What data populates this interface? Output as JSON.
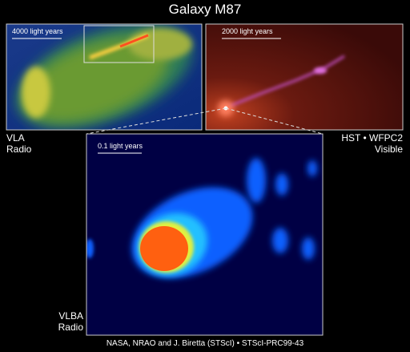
{
  "title": "Galaxy M87",
  "panels": {
    "vla": {
      "scale": "4000 light years",
      "label": [
        "VLA",
        "Radio"
      ]
    },
    "hst": {
      "scale": "2000 light years",
      "label": [
        "HST • WFPC2",
        "Visible"
      ]
    },
    "vlba": {
      "scale": "0.1 light years",
      "label": [
        "VLBA",
        "Radio"
      ]
    }
  },
  "credit": "NASA, NRAO and J. Biretta (STScI) • STScI-PRC99-43"
}
